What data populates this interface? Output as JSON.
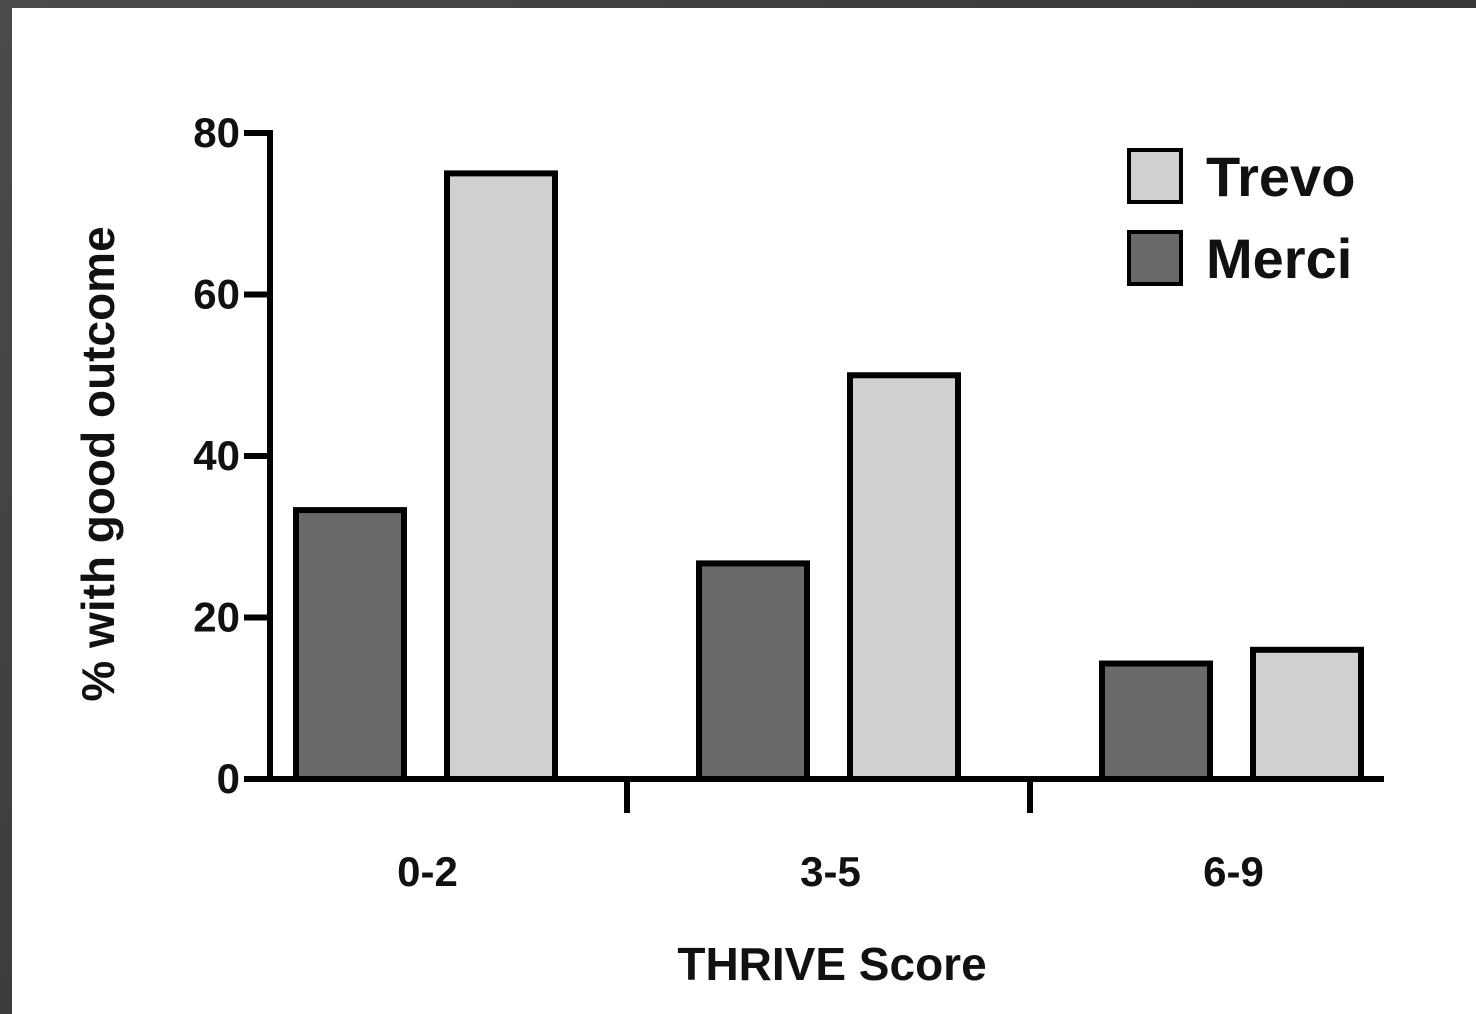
{
  "chart_data": {
    "type": "bar",
    "title": "",
    "xlabel": "THRIVE Score",
    "ylabel": "% with good outcome",
    "categories": [
      "0-2",
      "3-5",
      "6-9"
    ],
    "ylim": [
      0,
      80
    ],
    "yticks": [
      0,
      20,
      40,
      60,
      80
    ],
    "series": [
      {
        "name": "Merci",
        "values": [
          33.3,
          26.7,
          14.3
        ],
        "color": "#696969"
      },
      {
        "name": "Trevo",
        "values": [
          75,
          50,
          16
        ],
        "color": "#d0d0d0"
      }
    ],
    "legend": {
      "position": "top-right",
      "order": [
        "Trevo",
        "Merci"
      ]
    },
    "grid": false
  }
}
